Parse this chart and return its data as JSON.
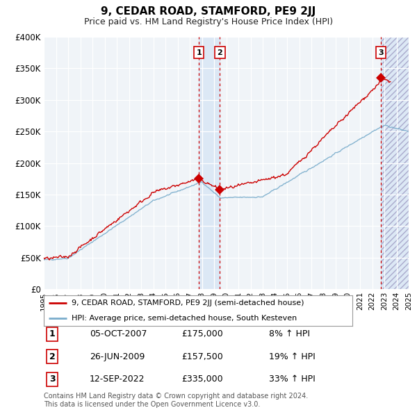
{
  "title": "9, CEDAR ROAD, STAMFORD, PE9 2JJ",
  "subtitle": "Price paid vs. HM Land Registry's House Price Index (HPI)",
  "red_label": "9, CEDAR ROAD, STAMFORD, PE9 2JJ (semi-detached house)",
  "blue_label": "HPI: Average price, semi-detached house, South Kesteven",
  "footer": "Contains HM Land Registry data © Crown copyright and database right 2024.\nThis data is licensed under the Open Government Licence v3.0.",
  "sales": [
    {
      "num": 1,
      "date": "05-OCT-2007",
      "price": "£175,000",
      "pct": "8% ↑ HPI",
      "year": 2007.75,
      "price_val": 175000
    },
    {
      "num": 2,
      "date": "26-JUN-2009",
      "price": "£157,500",
      "pct": "19% ↑ HPI",
      "year": 2009.48,
      "price_val": 157500
    },
    {
      "num": 3,
      "date": "12-SEP-2022",
      "price": "£335,000",
      "pct": "33% ↑ HPI",
      "year": 2022.7,
      "price_val": 335000
    }
  ],
  "ylim": [
    0,
    400000
  ],
  "xlim": [
    1995,
    2025
  ],
  "yticks": [
    0,
    50000,
    100000,
    150000,
    200000,
    250000,
    300000,
    350000,
    400000
  ],
  "ytick_labels": [
    "£0",
    "£50K",
    "£100K",
    "£150K",
    "£200K",
    "£250K",
    "£300K",
    "£350K",
    "£400K"
  ],
  "xticks": [
    1995,
    1996,
    1997,
    1998,
    1999,
    2000,
    2001,
    2002,
    2003,
    2004,
    2005,
    2006,
    2007,
    2008,
    2009,
    2010,
    2011,
    2012,
    2013,
    2014,
    2015,
    2016,
    2017,
    2018,
    2019,
    2020,
    2021,
    2022,
    2023,
    2024,
    2025
  ],
  "bg_color": "#f0f4f8",
  "red_color": "#cc0000",
  "blue_color": "#7aadcc",
  "shade_color": "#dce8f5"
}
